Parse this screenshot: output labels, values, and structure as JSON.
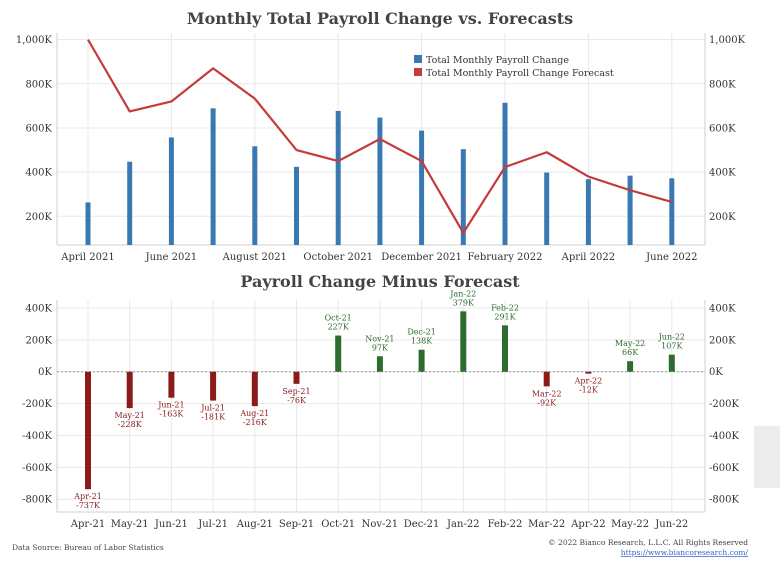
{
  "colors": {
    "bar": "#3a78b1",
    "line": "#c43b3a",
    "negative": "#8b1a1a",
    "positive": "#2e6b2e",
    "grid": "#e8e8e8",
    "axis": "#cfcfcf"
  },
  "chart_data": [
    {
      "type": "bar+line",
      "title": "Monthly Total Payroll Change vs. Forecasts",
      "x_tick_labels": [
        "April 2021",
        "June 2021",
        "August 2021",
        "October 2021",
        "December 2021",
        "February 2022",
        "April 2022",
        "June 2022"
      ],
      "y_tick_labels": [
        "200K",
        "400K",
        "600K",
        "800K",
        "1,000K"
      ],
      "y_ticks": [
        200,
        400,
        600,
        800,
        1000
      ],
      "ylim": [
        70,
        1030
      ],
      "categories": [
        "2021-04",
        "2021-05",
        "2021-06",
        "2021-07",
        "2021-08",
        "2021-09",
        "2021-10",
        "2021-11",
        "2021-12",
        "2022-01",
        "2022-02",
        "2022-03",
        "2022-04",
        "2022-05",
        "2022-06"
      ],
      "legend_position": "top-right",
      "series": [
        {
          "name": "Total Monthly Payroll Change",
          "type": "bar",
          "values": [
            263,
            447,
            557,
            689,
            517,
            424,
            677,
            647,
            588,
            504,
            714,
            398,
            368,
            384,
            372
          ]
        },
        {
          "name": "Total Monthly Payroll Change Forecast",
          "type": "line",
          "values": [
            1000,
            675,
            720,
            870,
            733,
            500,
            450,
            550,
            450,
            125,
            423,
            490,
            380,
            318,
            265
          ]
        }
      ]
    },
    {
      "type": "bar",
      "title": "Payroll Change Minus Forecast",
      "categories": [
        "Apr-21",
        "May-21",
        "Jun-21",
        "Jul-21",
        "Aug-21",
        "Sep-21",
        "Oct-21",
        "Nov-21",
        "Dec-21",
        "Jan-22",
        "Feb-22",
        "Mar-22",
        "Apr-22",
        "May-22",
        "Jun-22"
      ],
      "values": [
        -737,
        -228,
        -163,
        -181,
        -216,
        -76,
        227,
        97,
        138,
        379,
        291,
        -92,
        -12,
        66,
        107
      ],
      "data_labels": [
        "-737K",
        "-228K",
        "-163K",
        "-181K",
        "-216K",
        "-76K",
        "227K",
        "97K",
        "138K",
        "379K",
        "291K",
        "-92K",
        "-12K",
        "66K",
        "107K"
      ],
      "y_ticks": [
        -800,
        -600,
        -400,
        -200,
        0,
        200,
        400
      ],
      "y_tick_labels": [
        "-800K",
        "-600K",
        "-400K",
        "-200K",
        "0K",
        "200K",
        "400K"
      ],
      "ylim": [
        -880,
        450
      ]
    }
  ],
  "footer": {
    "source": "Data Source: Bureau of Labor Statistics",
    "copyright": "© 2022 Bianco Research, L.L.C. All Rights Reserved",
    "url": "https://www.biancoresearch.com/"
  }
}
